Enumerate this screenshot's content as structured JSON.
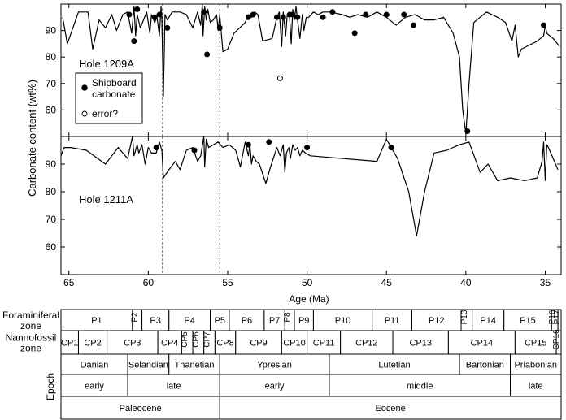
{
  "chart_data": {
    "type": "line",
    "xlabel": "Age (Ma)",
    "ylabel": "Carbonate content (wt%)",
    "xlim": [
      65.5,
      34
    ],
    "x_ticks": [
      65,
      60,
      55,
      50,
      45,
      40,
      35
    ],
    "reference_lines_age": [
      59.1,
      55.5
    ],
    "panels": [
      {
        "label": "Hole 1209A",
        "ylim": [
          50,
          100
        ],
        "y_ticks": [
          60,
          70,
          80,
          90
        ],
        "legend": {
          "shipboard": "Shipboard carbonate",
          "error": "error?"
        },
        "series": [
          {
            "style": "line",
            "x": [
              65.4,
              65.1,
              64.4,
              63.8,
              63.5,
              63.1,
              62.7,
              62.3,
              62.0,
              61.6,
              61.3,
              61.05,
              60.9,
              60.8,
              60.7,
              60.5,
              60.3,
              60.1,
              59.9,
              59.8,
              59.6,
              59.45,
              59.3,
              59.2,
              59.15,
              59.05,
              58.95,
              58.8,
              58.5,
              58.0,
              57.6,
              57.2,
              56.9,
              56.7,
              56.6,
              56.55,
              56.45,
              56.35,
              56.25,
              56.1,
              55.9,
              55.7,
              55.6,
              55.5,
              55.3,
              55.0,
              54.6,
              53.9,
              53.7,
              53.5,
              53.3,
              53.1,
              52.8,
              52.2,
              51.9,
              51.75,
              51.6,
              51.5,
              51.35,
              51.25,
              51.1,
              51.0,
              50.9,
              50.8,
              50.7,
              50.6,
              50.45,
              50.3,
              50.2,
              50.05,
              49.9,
              49.6,
              49.3,
              49.0,
              48.5,
              47.8,
              47.3,
              46.8,
              46.2,
              45.6,
              45.0,
              44.4,
              43.8,
              43.2,
              42.6,
              42.0,
              41.4,
              40.8,
              40.4,
              40.2,
              40.0,
              39.8,
              39.5,
              38.7,
              38.0,
              37.5,
              37.1,
              36.9,
              36.7,
              36.5,
              35.5,
              35.1,
              35.0,
              34.9,
              34.5,
              34.1
            ],
            "y": [
              95,
              85,
              97,
              97,
              83,
              94,
              91,
              96,
              90,
              96,
              97,
              89,
              99,
              88,
              96,
              91,
              94,
              97,
              89,
              96,
              93,
              95,
              88,
              99,
              94,
              65,
              96,
              94,
              97,
              97,
              96,
              91,
              97,
              92,
              100,
              88,
              99,
              94,
              98,
              93,
              94,
              96,
              90,
              96,
              82,
              83,
              89,
              93,
              96,
              95,
              97,
              96,
              86,
              87,
              95,
              97,
              84,
              97,
              88,
              96,
              95,
              85,
              98,
              94,
              99,
              94,
              87,
              96,
              90,
              95,
              95,
              97,
              96,
              97,
              97,
              96,
              95,
              96,
              95,
              97,
              95,
              92,
              95,
              96,
              94,
              94,
              95,
              89,
              80,
              60,
              51,
              70,
              93,
              97,
              95,
              93,
              86,
              92,
              80,
              83,
              86,
              88,
              92,
              89,
              87,
              84
            ]
          },
          {
            "style": "filled-circle",
            "name": "Shipboard carbonate",
            "x": [
              61.2,
              60.9,
              60.7,
              59.6,
              59.3,
              58.8,
              56.5,
              56.3,
              55.5,
              53.7,
              53.4,
              51.9,
              51.5,
              51.1,
              50.9,
              50.6,
              49.0,
              48.4,
              47.0,
              46.3,
              45.0,
              43.9,
              43.3,
              39.9,
              35.1
            ],
            "y": [
              96,
              86,
              98,
              95,
              96,
              91,
              97,
              81,
              91,
              95,
              96,
              95,
              95,
              96,
              96,
              95,
              95,
              97,
              89,
              96,
              96,
              96,
              92,
              52,
              92
            ]
          },
          {
            "style": "open-circle",
            "name": "error?",
            "x": [
              51.7
            ],
            "y": [
              72
            ]
          }
        ]
      },
      {
        "label": "Hole 1211A",
        "ylim": [
          50,
          100
        ],
        "y_ticks": [
          60,
          70,
          80,
          90
        ],
        "series": [
          {
            "style": "line",
            "x": [
              65.5,
              65.3,
              64.9,
              63.9,
              62.7,
              61.9,
              61.6,
              61.3,
              61.0,
              60.9,
              60.7,
              60.6,
              60.4,
              60.2,
              60.0,
              59.8,
              59.5,
              59.3,
              59.15,
              59.05,
              58.7,
              58.3,
              58.0,
              57.6,
              57.2,
              56.9,
              56.7,
              56.5,
              56.45,
              56.35,
              56.2,
              55.9,
              55.6,
              55.3,
              54.9,
              54.5,
              54.2,
              53.9,
              53.7,
              53.6,
              53.5,
              53.4,
              53.2,
              53.0,
              52.6,
              52.3,
              51.9,
              51.7,
              51.5,
              51.4,
              51.3,
              51.15,
              51.05,
              50.9,
              50.75,
              50.6,
              50.45,
              50.3,
              50.1,
              49.8,
              45.6,
              45.0,
              44.3,
              43.6,
              43.1,
              42.6,
              42.0,
              41.2,
              40.4,
              39.8,
              39.1,
              38.6,
              38.0,
              37.2,
              36.3,
              35.5,
              35.2,
              35.1,
              35.0,
              34.9,
              34.8,
              34.2
            ],
            "y": [
              93,
              96,
              96,
              95,
              90,
              96,
              94,
              92,
              100,
              93,
              97,
              94,
              97,
              90,
              96,
              94,
              94,
              98,
              95,
              85,
              88,
              91,
              88,
              95,
              96,
              91,
              93,
              100,
              89,
              99,
              96,
              97,
              98,
              96,
              97,
              95,
              89,
              98,
              93,
              97,
              90,
              93,
              91,
              90,
              83,
              89,
              96,
              93,
              97,
              87,
              94,
              96,
              92,
              97,
              95,
              96,
              93,
              95,
              94,
              93,
              91,
              99,
              92,
              80,
              64,
              80,
              94,
              95,
              97,
              98,
              87,
              90,
              84,
              85,
              84,
              85,
              91,
              98,
              84,
              97,
              96,
              88
            ]
          },
          {
            "style": "filled-circle",
            "name": "Shipboard carbonate",
            "x": [
              59.5,
              57.1,
              53.7,
              52.4,
              50.0,
              44.7
            ],
            "y": [
              96,
              95,
              97,
              98,
              96,
              96
            ]
          }
        ]
      }
    ],
    "zone_rows": [
      {
        "label_lines": [
          "Foraminiferal",
          "zone"
        ],
        "segments": [
          {
            "label": "P1",
            "start": 65.5,
            "end": 61.0
          },
          {
            "label": "P2",
            "start": 61.0,
            "end": 60.4,
            "vertical": true
          },
          {
            "label": "P3",
            "start": 60.4,
            "end": 58.7
          },
          {
            "label": "P4",
            "start": 58.7,
            "end": 56.1
          },
          {
            "label": "P5",
            "start": 56.1,
            "end": 54.9
          },
          {
            "label": "P6",
            "start": 54.9,
            "end": 52.7
          },
          {
            "label": "P7",
            "start": 52.7,
            "end": 51.4
          },
          {
            "label": "P8",
            "start": 51.4,
            "end": 50.8,
            "vertical": true
          },
          {
            "label": "P9",
            "start": 50.8,
            "end": 49.6
          },
          {
            "label": "P10",
            "start": 49.6,
            "end": 45.9
          },
          {
            "label": "P11",
            "start": 45.9,
            "end": 43.4
          },
          {
            "label": "P12",
            "start": 43.4,
            "end": 40.3
          },
          {
            "label": "P13",
            "start": 40.3,
            "end": 39.6,
            "vertical": true
          },
          {
            "label": "P14",
            "start": 39.6,
            "end": 37.6
          },
          {
            "label": "P15",
            "start": 37.6,
            "end": 34.6
          },
          {
            "label": "P16",
            "start": 34.6,
            "end": 34.2,
            "vertical": true
          },
          {
            "label": "P17",
            "start": 34.2,
            "end": 33.8,
            "vertical": true
          }
        ]
      },
      {
        "label_lines": [
          "Nannofossil",
          "zone"
        ],
        "segments": [
          {
            "label": "CP1",
            "start": 65.5,
            "end": 64.4
          },
          {
            "label": "CP2",
            "start": 64.4,
            "end": 62.6
          },
          {
            "label": "CP3",
            "start": 62.6,
            "end": 59.4
          },
          {
            "label": "CP4",
            "start": 59.4,
            "end": 57.9
          },
          {
            "label": "CP5",
            "start": 57.9,
            "end": 57.2,
            "vertical": true
          },
          {
            "label": "CP6",
            "start": 57.2,
            "end": 56.5,
            "vertical": true
          },
          {
            "label": "CP7",
            "start": 56.5,
            "end": 55.8,
            "vertical": true
          },
          {
            "label": "CP8",
            "start": 55.8,
            "end": 54.5
          },
          {
            "label": "CP9",
            "start": 54.5,
            "end": 51.6
          },
          {
            "label": "CP10",
            "start": 51.6,
            "end": 50.0
          },
          {
            "label": "CP11",
            "start": 50.0,
            "end": 47.9
          },
          {
            "label": "CP12",
            "start": 47.9,
            "end": 44.6
          },
          {
            "label": "CP13",
            "start": 44.6,
            "end": 41.1
          },
          {
            "label": "CP14",
            "start": 41.1,
            "end": 36.9
          },
          {
            "label": "CP15",
            "start": 36.9,
            "end": 34.3
          },
          {
            "label": "CP16",
            "start": 34.3,
            "end": 33.8,
            "vertical": true
          }
        ]
      },
      {
        "label_lines": [
          "Epoch"
        ],
        "stacked": [
          [
            {
              "label": "Danian",
              "start": 65.5,
              "end": 61.3
            },
            {
              "label": "Selandian",
              "start": 61.3,
              "end": 58.7
            },
            {
              "label": "Thanetian",
              "start": 58.7,
              "end": 55.5
            },
            {
              "label": "Ypresian",
              "start": 55.5,
              "end": 48.6
            },
            {
              "label": "Lutetian",
              "start": 48.6,
              "end": 40.4
            },
            {
              "label": "Bartonian",
              "start": 40.4,
              "end": 37.2
            },
            {
              "label": "Priabonian",
              "start": 37.2,
              "end": 33.8
            }
          ],
          [
            {
              "label": "early",
              "start": 65.5,
              "end": 61.3
            },
            {
              "label": "late",
              "start": 61.3,
              "end": 55.5
            },
            {
              "label": "early",
              "start": 55.5,
              "end": 48.6
            },
            {
              "label": "middle",
              "start": 48.6,
              "end": 37.2
            },
            {
              "label": "late",
              "start": 37.2,
              "end": 33.8
            }
          ],
          [
            {
              "label": "Paleocene",
              "start": 65.5,
              "end": 55.5
            },
            {
              "label": "Eocene",
              "start": 55.5,
              "end": 33.8
            }
          ]
        ]
      }
    ]
  }
}
